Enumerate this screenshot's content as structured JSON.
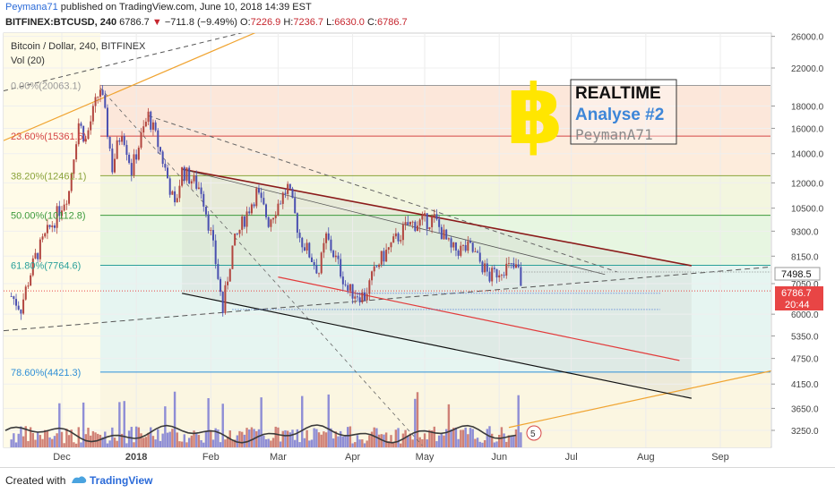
{
  "header": {
    "user": "Peymana71",
    "published_text": "published on TradingView.com, June 10, 2018 14:39 EST",
    "symbol": "BITFINEX:BTCUSD, 240",
    "last": "6786.7",
    "change": "−711.8 (−9.49%)",
    "o_label": "O:",
    "o_val": "7226.9",
    "h_label": "H:",
    "h_val": "7236.7",
    "l_label": "L:",
    "l_val": "6630.0",
    "c_label": "C:",
    "c_val": "6786.7"
  },
  "legend": {
    "title": "Bitcoin / Dollar, 240, BITFINEX",
    "vol": "Vol (20)"
  },
  "annotation": {
    "line1": "REALTIME",
    "line2": "Analyse #2",
    "line3": "PeymanA71",
    "symbol": "฿"
  },
  "price_labels": {
    "current": "7498.5",
    "last": "6786.7",
    "timer": "20:44"
  },
  "footer": {
    "created_with": "Created with",
    "brand": "TradingView"
  },
  "badge": "5",
  "colors": {
    "up": "#b2453f",
    "down": "#4a4fb0",
    "fib_red": "#d54545",
    "fib_green": "#3c9a3c",
    "fib_blue": "#2f8fd6",
    "orange": "#f0a431",
    "channel_top": "#8b1a1a",
    "red_line": "#e23b3b",
    "coin": "#ffe600",
    "accent_blue": "#3d86d8"
  },
  "chart_data": {
    "type": "line",
    "title": "Bitcoin / Dollar, 240, BITFINEX",
    "x_ticks": [
      "Dec",
      "2018",
      "Feb",
      "Mar",
      "Apr",
      "May",
      "Jun",
      "Jul",
      "Aug",
      "Sep"
    ],
    "y_ticks": [
      26000,
      22000,
      18000,
      16000,
      14000,
      12000,
      10500,
      9300,
      8150,
      7050,
      6000,
      5350,
      4750,
      4150,
      3650,
      3250
    ],
    "fib_levels": [
      {
        "label": "0.00%(20063.1)",
        "price": 20063.1
      },
      {
        "label": "23.60%(15361.6)",
        "price": 15361.6
      },
      {
        "label": "38.20%(12461.1)",
        "price": 12461.1
      },
      {
        "label": "50.00%(10112.8)",
        "price": 10112.8
      },
      {
        "label": "61.80%(7764.6)",
        "price": 7764.6
      },
      {
        "label": "78.60%(4421.3)",
        "price": 4421.3
      }
    ],
    "price_path": [
      [
        "2017-11-10",
        6600
      ],
      [
        "2017-11-14",
        6200
      ],
      [
        "2017-11-20",
        8100
      ],
      [
        "2017-11-28",
        9900
      ],
      [
        "2017-12-04",
        11500
      ],
      [
        "2017-12-08",
        16500
      ],
      [
        "2017-12-11",
        15000
      ],
      [
        "2017-12-17",
        19800
      ],
      [
        "2017-12-22",
        13000
      ],
      [
        "2017-12-26",
        16000
      ],
      [
        "2017-12-30",
        12800
      ],
      [
        "2018-01-06",
        17100
      ],
      [
        "2018-01-12",
        13500
      ],
      [
        "2018-01-17",
        10500
      ],
      [
        "2018-01-20",
        12800
      ],
      [
        "2018-01-28",
        11600
      ],
      [
        "2018-02-02",
        8500
      ],
      [
        "2018-02-06",
        6100
      ],
      [
        "2018-02-10",
        8500
      ],
      [
        "2018-02-20",
        11400
      ],
      [
        "2018-02-25",
        9800
      ],
      [
        "2018-03-05",
        11700
      ],
      [
        "2018-03-10",
        9000
      ],
      [
        "2018-03-18",
        7500
      ],
      [
        "2018-03-21",
        9000
      ],
      [
        "2018-03-30",
        6800
      ],
      [
        "2018-04-06",
        6600
      ],
      [
        "2018-04-12",
        7900
      ],
      [
        "2018-04-24",
        9600
      ],
      [
        "2018-05-05",
        9900
      ],
      [
        "2018-05-12",
        8400
      ],
      [
        "2018-05-20",
        8500
      ],
      [
        "2018-05-28",
        7300
      ],
      [
        "2018-06-03",
        7700
      ],
      [
        "2018-06-09",
        7600
      ],
      [
        "2018-06-10",
        6786.7
      ]
    ],
    "last_price": 6786.7,
    "current_label": 7498.5
  }
}
